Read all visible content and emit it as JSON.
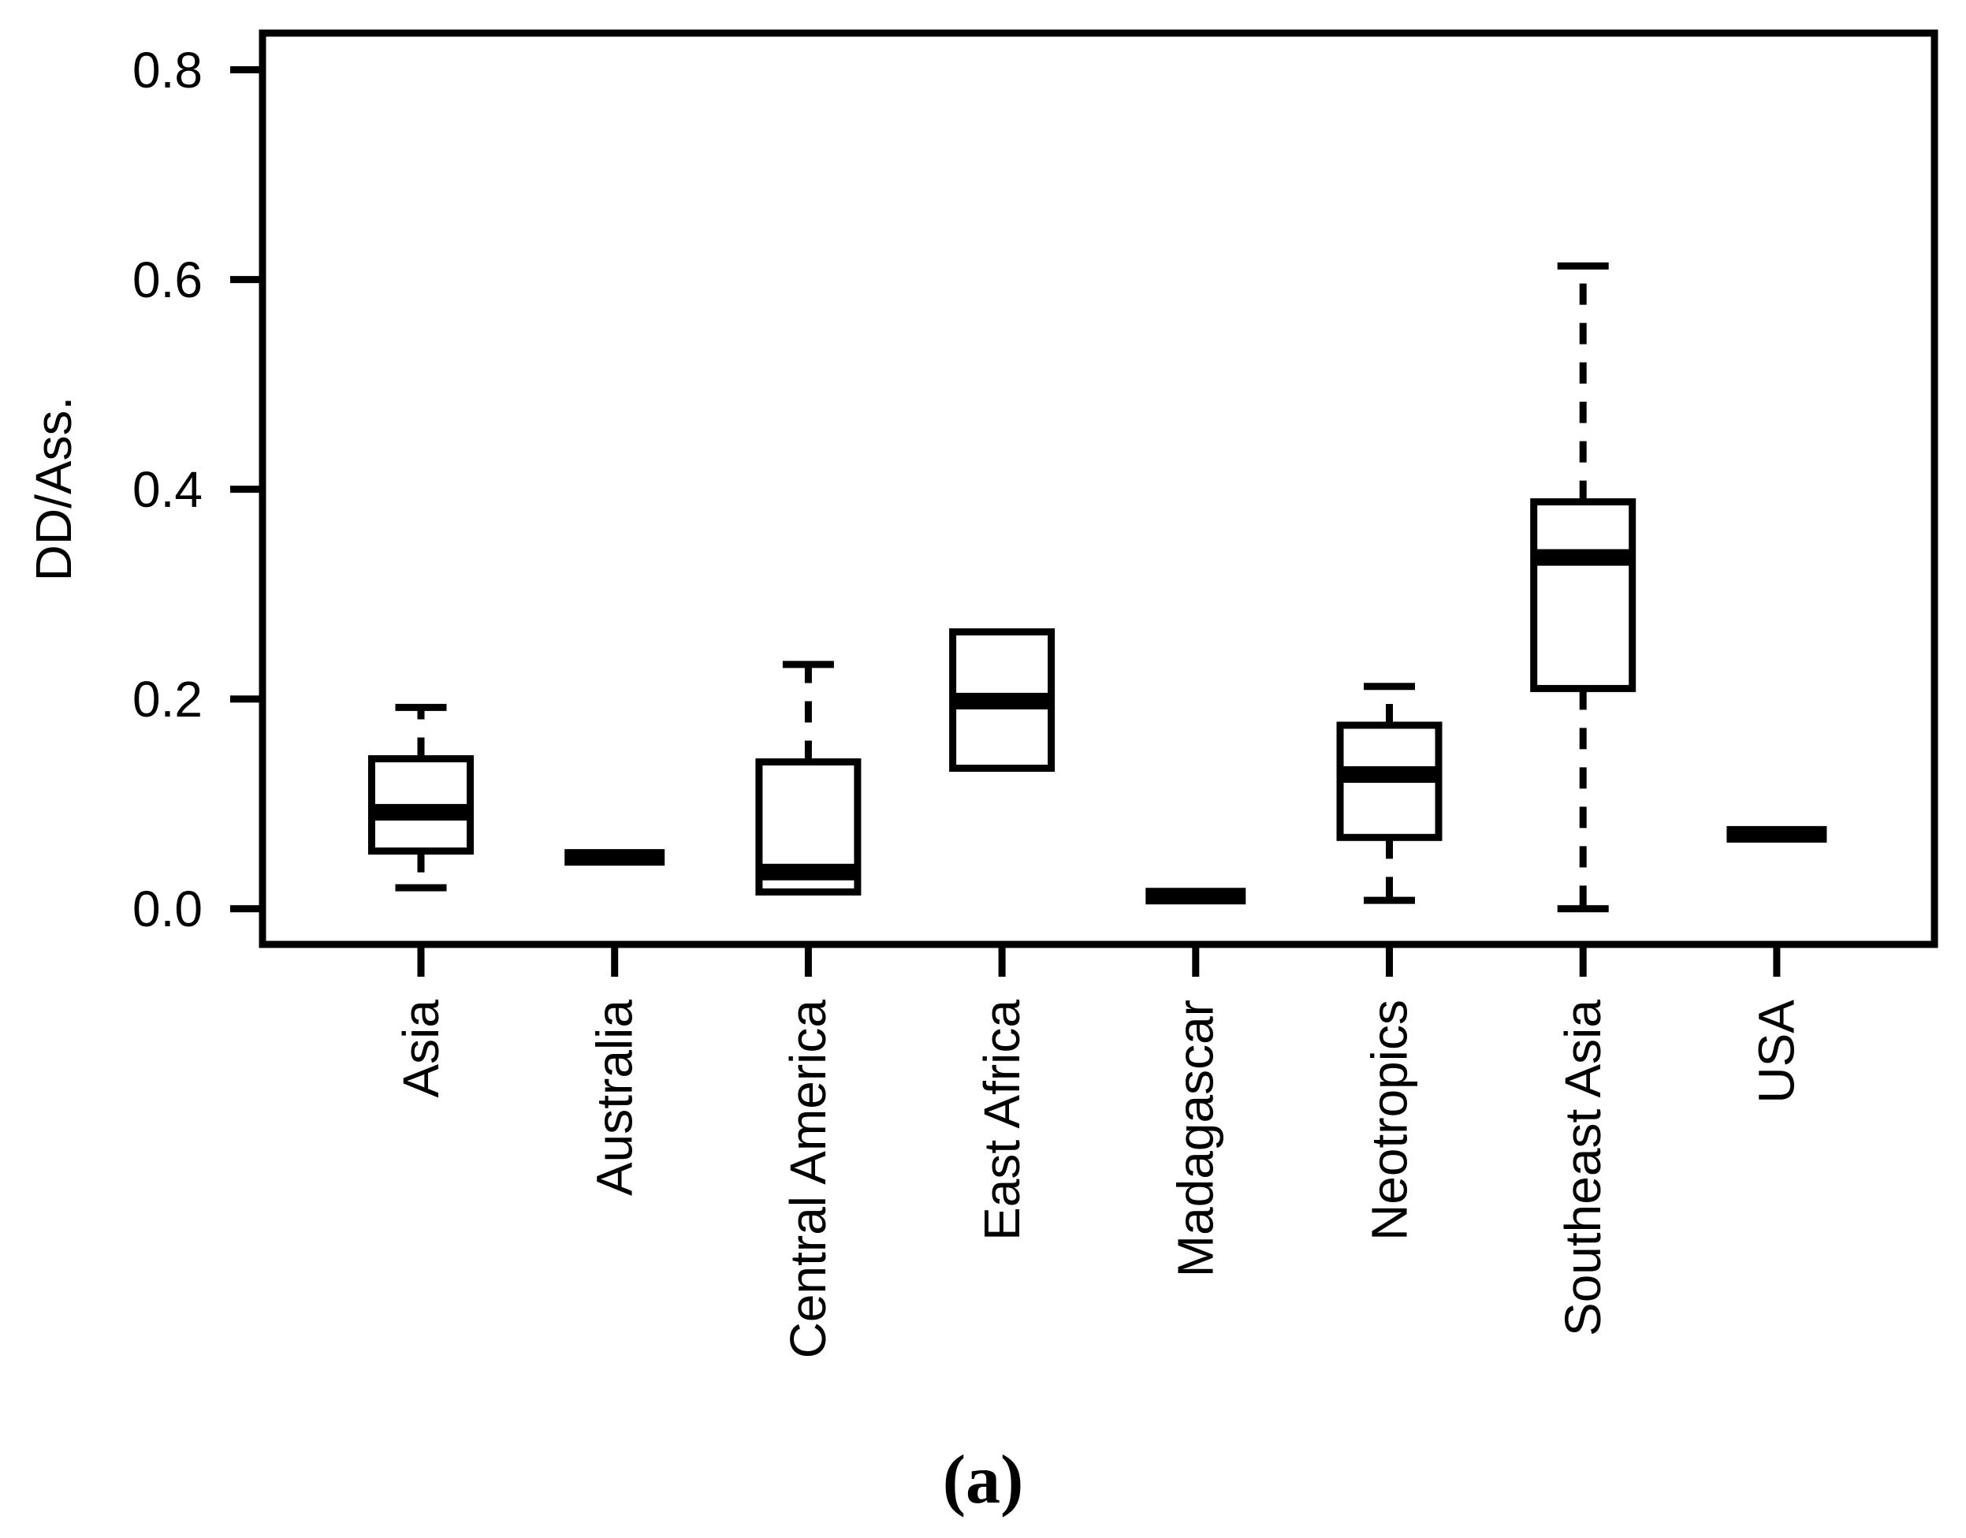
{
  "figure": {
    "caption": "(a)",
    "background_color": "#ffffff",
    "stroke_color": "#000000"
  },
  "chart_data": {
    "type": "boxplot",
    "title": "",
    "xlabel": "",
    "ylabel": "DD/Ass.",
    "ylim": [
      -0.034,
      0.835
    ],
    "yticks": [
      0.0,
      0.2,
      0.4,
      0.6,
      0.8
    ],
    "ytick_labels": [
      "0.0",
      "0.2",
      "0.4",
      "0.6",
      "0.8"
    ],
    "grid": false,
    "legend": "none",
    "categories": [
      "Asia",
      "Australia",
      "Central America",
      "East Africa",
      "Madagascar",
      "Neotropics",
      "Southeast Asia",
      "USA"
    ],
    "boxes": [
      {
        "category": "Asia",
        "whisker_low": 0.02,
        "q1": 0.055,
        "median": 0.092,
        "q3": 0.143,
        "whisker_high": 0.192
      },
      {
        "category": "Australia",
        "whisker_low": 0.049,
        "q1": 0.049,
        "median": 0.049,
        "q3": 0.049,
        "whisker_high": 0.049
      },
      {
        "category": "Central America",
        "whisker_low": 0.016,
        "q1": 0.016,
        "median": 0.035,
        "q3": 0.14,
        "whisker_high": 0.233
      },
      {
        "category": "East Africa",
        "whisker_low": 0.134,
        "q1": 0.134,
        "median": 0.198,
        "q3": 0.264,
        "whisker_high": 0.264
      },
      {
        "category": "Madagascar",
        "whisker_low": 0.012,
        "q1": 0.012,
        "median": 0.012,
        "q3": 0.012,
        "whisker_high": 0.012
      },
      {
        "category": "Neotropics",
        "whisker_low": 0.008,
        "q1": 0.068,
        "median": 0.128,
        "q3": 0.175,
        "whisker_high": 0.212
      },
      {
        "category": "Southeast Asia",
        "whisker_low": 0.0,
        "q1": 0.21,
        "median": 0.335,
        "q3": 0.388,
        "whisker_high": 0.613
      },
      {
        "category": "USA",
        "whisker_low": 0.071,
        "q1": 0.071,
        "median": 0.071,
        "q3": 0.071,
        "whisker_high": 0.071
      }
    ]
  }
}
